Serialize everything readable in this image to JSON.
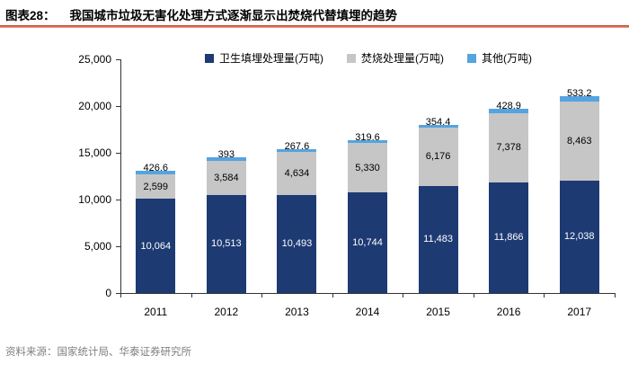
{
  "header": {
    "figure_label": "图表28：",
    "title": "我国城市垃圾无害化处理方式逐渐显示出焚烧代替填埋的趋势"
  },
  "footer": {
    "source": "资料来源：国家统计局、华泰证券研究所"
  },
  "colors": {
    "landfill_navy": "#1d3a73",
    "incineration_gray": "#c6c6c6",
    "other_lightblue": "#54a4e0",
    "rule_red_dark": "#b8452f",
    "rule_red_light": "#f0aa97",
    "axis": "#333333",
    "source_text": "#7f7f7f"
  },
  "chart_data": {
    "type": "bar",
    "stacked": true,
    "title": "我国城市垃圾无害化处理方式逐渐显示出焚烧代替填埋的趋势",
    "xlabel": "",
    "ylabel": "",
    "categories": [
      "2011",
      "2012",
      "2013",
      "2014",
      "2015",
      "2016",
      "2017"
    ],
    "series": [
      {
        "name": "卫生填埋处理量(万吨)",
        "color": "#1d3a73",
        "label_color": "#ffffff",
        "values": [
          10064,
          10513,
          10493,
          10744,
          11483,
          11866,
          12038
        ],
        "labels": [
          "10,064",
          "10,513",
          "10,493",
          "10,744",
          "11,483",
          "11,866",
          "12,038"
        ]
      },
      {
        "name": "焚烧处理量(万吨)",
        "color": "#c6c6c6",
        "label_color": "#000000",
        "values": [
          2599,
          3584,
          4634,
          5330,
          6176,
          7378,
          8463
        ],
        "labels": [
          "2,599",
          "3,584",
          "4,634",
          "5,330",
          "6,176",
          "7,378",
          "8,463"
        ]
      },
      {
        "name": "其他(万吨)",
        "color": "#54a4e0",
        "label_color": "#000000",
        "values": [
          426.6,
          393,
          267.6,
          319.6,
          354.4,
          428.9,
          533.2
        ],
        "labels": [
          "426.6",
          "393",
          "267.6",
          "319.6",
          "354.4",
          "428.9",
          "533.2"
        ]
      }
    ],
    "ylim": [
      0,
      25000
    ],
    "ytick_interval": 5000,
    "ytick_labels": [
      "0",
      "5,000",
      "10,000",
      "15,000",
      "20,000",
      "25,000"
    ],
    "legend_position": "top",
    "grid": false
  }
}
